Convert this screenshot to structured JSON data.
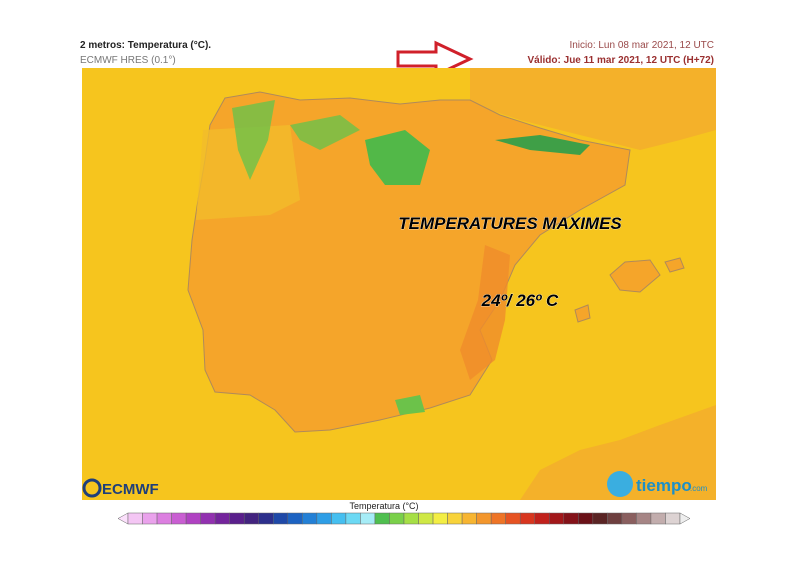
{
  "header": {
    "title": "2 metros: Temperatura (°C).",
    "model": "ECMWF HRES (0.1°)",
    "run": "Inicio: Lun 08 mar 2021, 12 UTC",
    "valid": "Válido: Jue 11 mar 2021, 12 UTC (H+72)"
  },
  "annotations": [
    "TEMPERATURES MAXIMES",
    "24º/ 26º C"
  ],
  "logos": {
    "ecmwf": "ECMWF",
    "tiempo": "tiempo",
    "tiempo_domain": ".com"
  },
  "colorbar": {
    "title": "Temperatura (°C)"
  }
}
